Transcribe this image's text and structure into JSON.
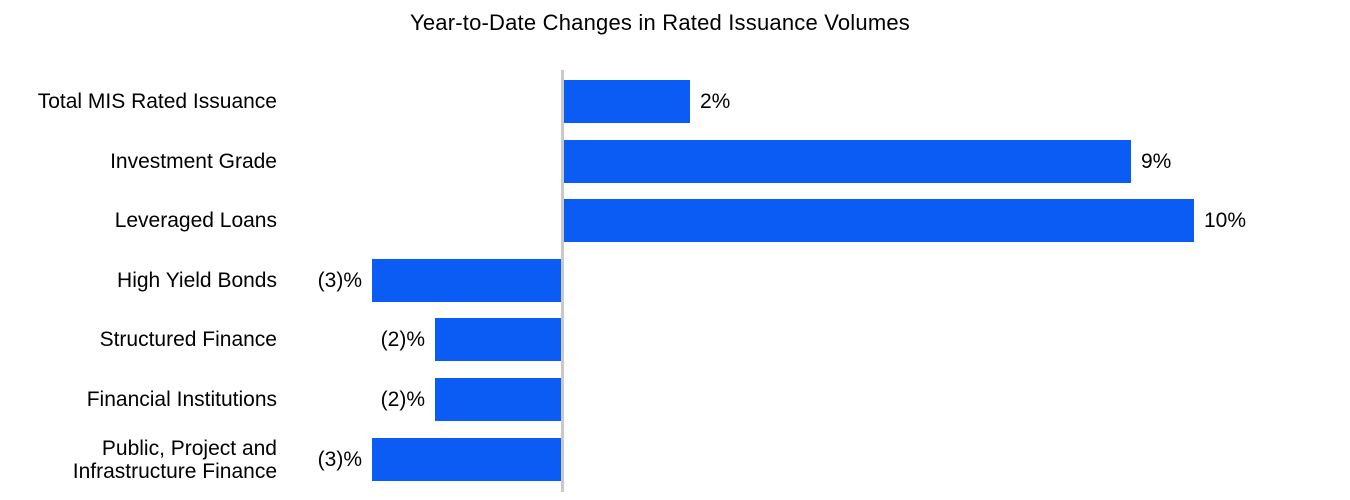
{
  "chart_data": {
    "type": "bar",
    "orientation": "horizontal",
    "title": "Year-to-Date Changes in Rated Issuance Volumes",
    "categories": [
      "Total MIS Rated Issuance",
      "Investment Grade",
      "Leveraged Loans",
      "High Yield Bonds",
      "Structured Finance",
      "Financial Institutions",
      "Public, Project and\nInfrastructure Finance"
    ],
    "values": [
      2,
      9,
      10,
      -3,
      -2,
      -2,
      -3
    ],
    "value_labels": [
      "2%",
      "9%",
      "10%",
      "(3)%",
      "(2)%",
      "(2)%",
      "(3)%"
    ],
    "unit": "percent",
    "negative_format": "parentheses",
    "xlim": [
      -3.5,
      12.5
    ],
    "grid": false,
    "legend": null,
    "colors": {
      "bar": "#0A5CF5",
      "axis": "#C9C9C9",
      "text": "#000000",
      "background": "#FFFFFF"
    }
  }
}
